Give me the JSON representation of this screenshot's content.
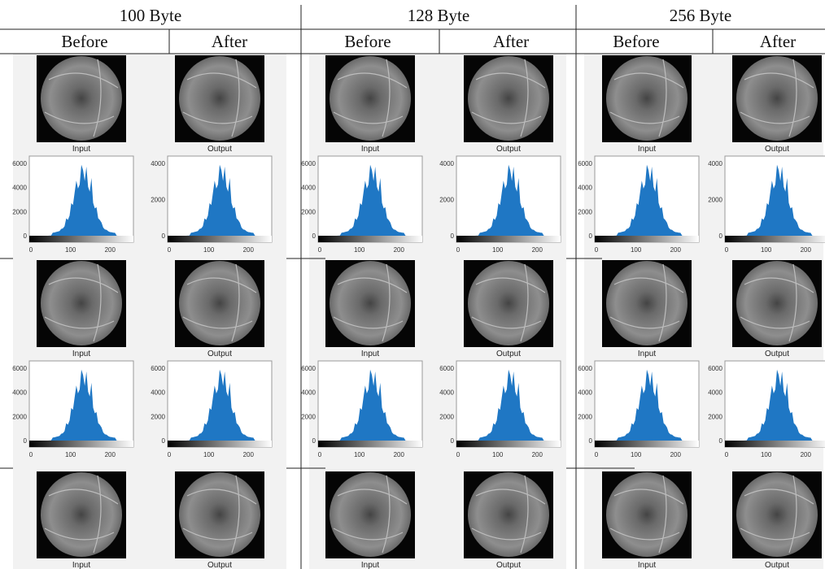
{
  "header": {
    "groups": [
      "100 Byte",
      "128 Byte",
      "256 Byte"
    ],
    "subheaders": [
      "Before",
      "After",
      "Before",
      "After",
      "Before",
      "After"
    ]
  },
  "rows": [
    {
      "panels": [
        {
          "caption": "Input",
          "yticks": [
            6000,
            4000,
            2000,
            0
          ],
          "xticks": [
            0,
            100,
            200
          ]
        },
        {
          "caption": "Output",
          "yticks": [
            4000,
            2000,
            0
          ],
          "xticks": [
            0,
            100,
            200
          ]
        },
        {
          "caption": "Input",
          "yticks": [
            6000,
            4000,
            2000,
            0
          ],
          "xticks": [
            0,
            100,
            200
          ]
        },
        {
          "caption": "Output",
          "yticks": [
            4000,
            2000,
            0
          ],
          "xticks": [
            0,
            100,
            200
          ]
        },
        {
          "caption": "Input",
          "yticks": [
            6000,
            4000,
            2000,
            0
          ],
          "xticks": [
            0,
            100,
            200
          ]
        },
        {
          "caption": "Output",
          "yticks": [
            4000,
            2000,
            0
          ],
          "xticks": [
            0,
            100,
            200
          ]
        }
      ]
    },
    {
      "panels": [
        {
          "caption": "Input",
          "yticks": [
            6000,
            4000,
            2000,
            0
          ],
          "xticks": [
            0,
            100,
            200
          ]
        },
        {
          "caption": "Output",
          "yticks": [
            6000,
            4000,
            2000,
            0
          ],
          "xticks": [
            0,
            100,
            200
          ]
        },
        {
          "caption": "Input",
          "yticks": [
            6000,
            4000,
            2000,
            0
          ],
          "xticks": [
            0,
            100,
            200
          ]
        },
        {
          "caption": "Output",
          "yticks": [
            6000,
            4000,
            2000,
            0
          ],
          "xticks": [
            0,
            100,
            200
          ]
        },
        {
          "caption": "Input",
          "yticks": [
            6000,
            4000,
            2000,
            0
          ],
          "xticks": [
            0,
            100,
            200
          ]
        },
        {
          "caption": "Output",
          "yticks": [
            6000,
            4000,
            2000,
            0
          ],
          "xticks": [
            0,
            100,
            200
          ]
        }
      ]
    },
    {
      "panels": [
        {
          "caption": "Input"
        },
        {
          "caption": "Output"
        },
        {
          "caption": "Input"
        },
        {
          "caption": "Output"
        },
        {
          "caption": "Input"
        },
        {
          "caption": "Output"
        }
      ]
    }
  ]
}
